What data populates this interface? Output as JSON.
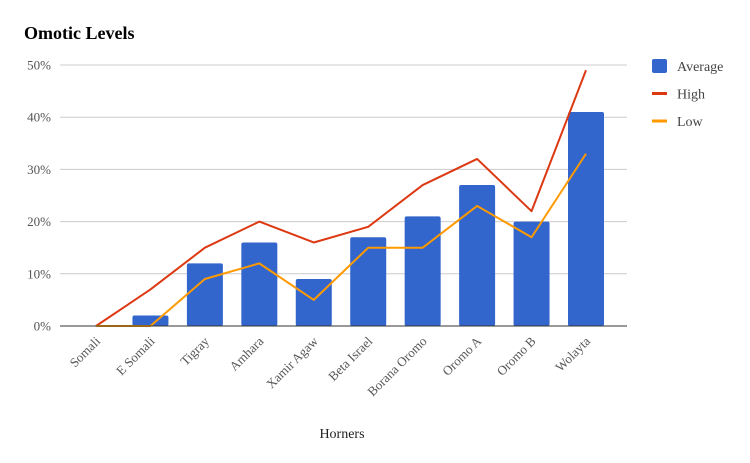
{
  "chart_data": {
    "type": "bar",
    "title": "Omotic Levels",
    "xlabel": "Horners",
    "ylabel": "",
    "ylim": [
      0,
      50
    ],
    "yticks": [
      "0%",
      "10%",
      "20%",
      "30%",
      "40%",
      "50%"
    ],
    "ytick_values": [
      0,
      10,
      20,
      30,
      40,
      50
    ],
    "categories": [
      "Somali",
      "E Somali",
      "Tigray",
      "Amhara",
      "Xamir Agaw",
      "Beta Israel",
      "Borana Oromo",
      "Oromo A",
      "Oromo B",
      "Wolayta"
    ],
    "series": [
      {
        "name": "Average",
        "type": "bar",
        "color": "#3366cc",
        "values": [
          0,
          2,
          12,
          16,
          9,
          17,
          21,
          27,
          20,
          41
        ]
      },
      {
        "name": "High",
        "type": "line",
        "color": "#dc3912",
        "values": [
          0,
          7,
          15,
          20,
          16,
          19,
          27,
          32,
          22,
          49
        ]
      },
      {
        "name": "Low",
        "type": "line",
        "color": "#ff9900",
        "values": [
          0,
          0,
          9,
          12,
          5,
          15,
          15,
          23,
          17,
          33
        ]
      }
    ],
    "grid": true,
    "legend_position": "right"
  }
}
